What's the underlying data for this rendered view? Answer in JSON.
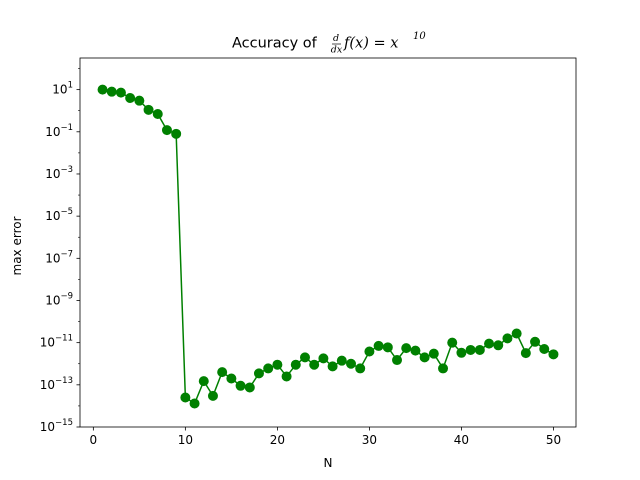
{
  "chart_data": {
    "type": "line",
    "title": {
      "prefix": "Accuracy of ",
      "frac_num": "d",
      "frac_den": "dx",
      "expr": "f(x) = x",
      "exp": "10"
    },
    "xlabel": "N",
    "ylabel": "max error",
    "xlim": [
      -1.45,
      52.45
    ],
    "ylim_log10": [
      -15,
      2.5
    ],
    "yscale": "log",
    "grid": false,
    "color": "#008000",
    "marker": "circle",
    "x_ticks": [
      "0",
      "10",
      "20",
      "30",
      "40",
      "50"
    ],
    "y_ticks": [
      {
        "base": "10",
        "exp": "1"
      },
      {
        "base": "10",
        "exp": "−1"
      },
      {
        "base": "10",
        "exp": "−3"
      },
      {
        "base": "10",
        "exp": "−5"
      },
      {
        "base": "10",
        "exp": "−7"
      },
      {
        "base": "10",
        "exp": "−9"
      },
      {
        "base": "10",
        "exp": "−11"
      },
      {
        "base": "10",
        "exp": "−13"
      },
      {
        "base": "10",
        "exp": "−15"
      }
    ],
    "series": [
      {
        "x": [
          1,
          2,
          3,
          4,
          5,
          6,
          7,
          8,
          9,
          10,
          11,
          12,
          13,
          14,
          15,
          16,
          17,
          18,
          19,
          20,
          21,
          22,
          23,
          24,
          25,
          26,
          27,
          28,
          29,
          30,
          31,
          32,
          33,
          34,
          35,
          36,
          37,
          38,
          39,
          40,
          41,
          42,
          43,
          44,
          45,
          46,
          47,
          48,
          49,
          50
        ],
        "y": [
          10,
          8,
          7.2,
          4,
          3,
          1.1,
          0.7,
          0.12,
          0.08,
          2.5e-14,
          1.3e-14,
          1.5e-13,
          3e-14,
          4e-13,
          2e-13,
          9e-14,
          7.5e-14,
          3.5e-13,
          6e-13,
          9e-13,
          2.5e-13,
          9e-13,
          2e-12,
          9e-13,
          1.8e-12,
          7.5e-13,
          1.4e-12,
          1e-12,
          6e-13,
          3.8e-12,
          7e-12,
          6e-12,
          1.5e-12,
          5.5e-12,
          4.2e-12,
          2e-12,
          3e-12,
          6e-13,
          1e-11,
          3.3e-12,
          4.5e-12,
          4.5e-12,
          9e-12,
          7.5e-12,
          1.6e-11,
          2.7e-11,
          3.2e-12,
          1.1e-11,
          5e-12,
          2.8e-12
        ]
      }
    ]
  }
}
